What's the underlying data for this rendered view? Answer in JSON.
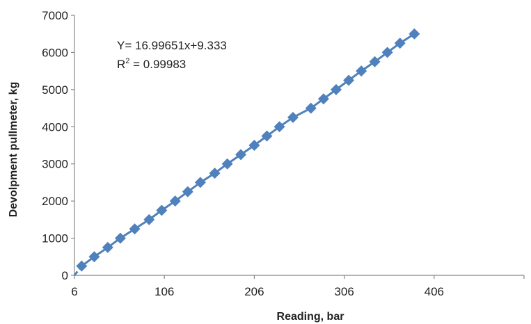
{
  "chart_data": {
    "type": "line",
    "title": "",
    "xlabel": "Reading, bar",
    "ylabel": "Devolpment pullmeter, kg",
    "xlim": [
      6,
      506
    ],
    "ylim": [
      0,
      7000
    ],
    "x_ticks": [
      6,
      106,
      206,
      306,
      406
    ],
    "y_ticks": [
      0,
      1000,
      2000,
      3000,
      4000,
      5000,
      6000,
      7000
    ],
    "grid": false,
    "legend": "none",
    "annotations": {
      "equation": "Y= 16.99651x+9.333",
      "r2_label": "R",
      "r2_sup": "2",
      "r2_value": " = 0.99983"
    },
    "series": [
      {
        "color": "#4F81BD",
        "marker": "diamond",
        "x": [
          14,
          28,
          43,
          57,
          73,
          89,
          103,
          118,
          132,
          146,
          162,
          176,
          191,
          206,
          220,
          234,
          249,
          269,
          283,
          297,
          311,
          325,
          340,
          354,
          368,
          384
        ],
        "y": [
          250,
          500,
          750,
          1000,
          1250,
          1500,
          1750,
          2000,
          2250,
          2500,
          2750,
          3000,
          3250,
          3500,
          3750,
          4000,
          4250,
          4500,
          4750,
          5000,
          5250,
          5500,
          5750,
          6000,
          6250,
          6500
        ]
      }
    ]
  }
}
